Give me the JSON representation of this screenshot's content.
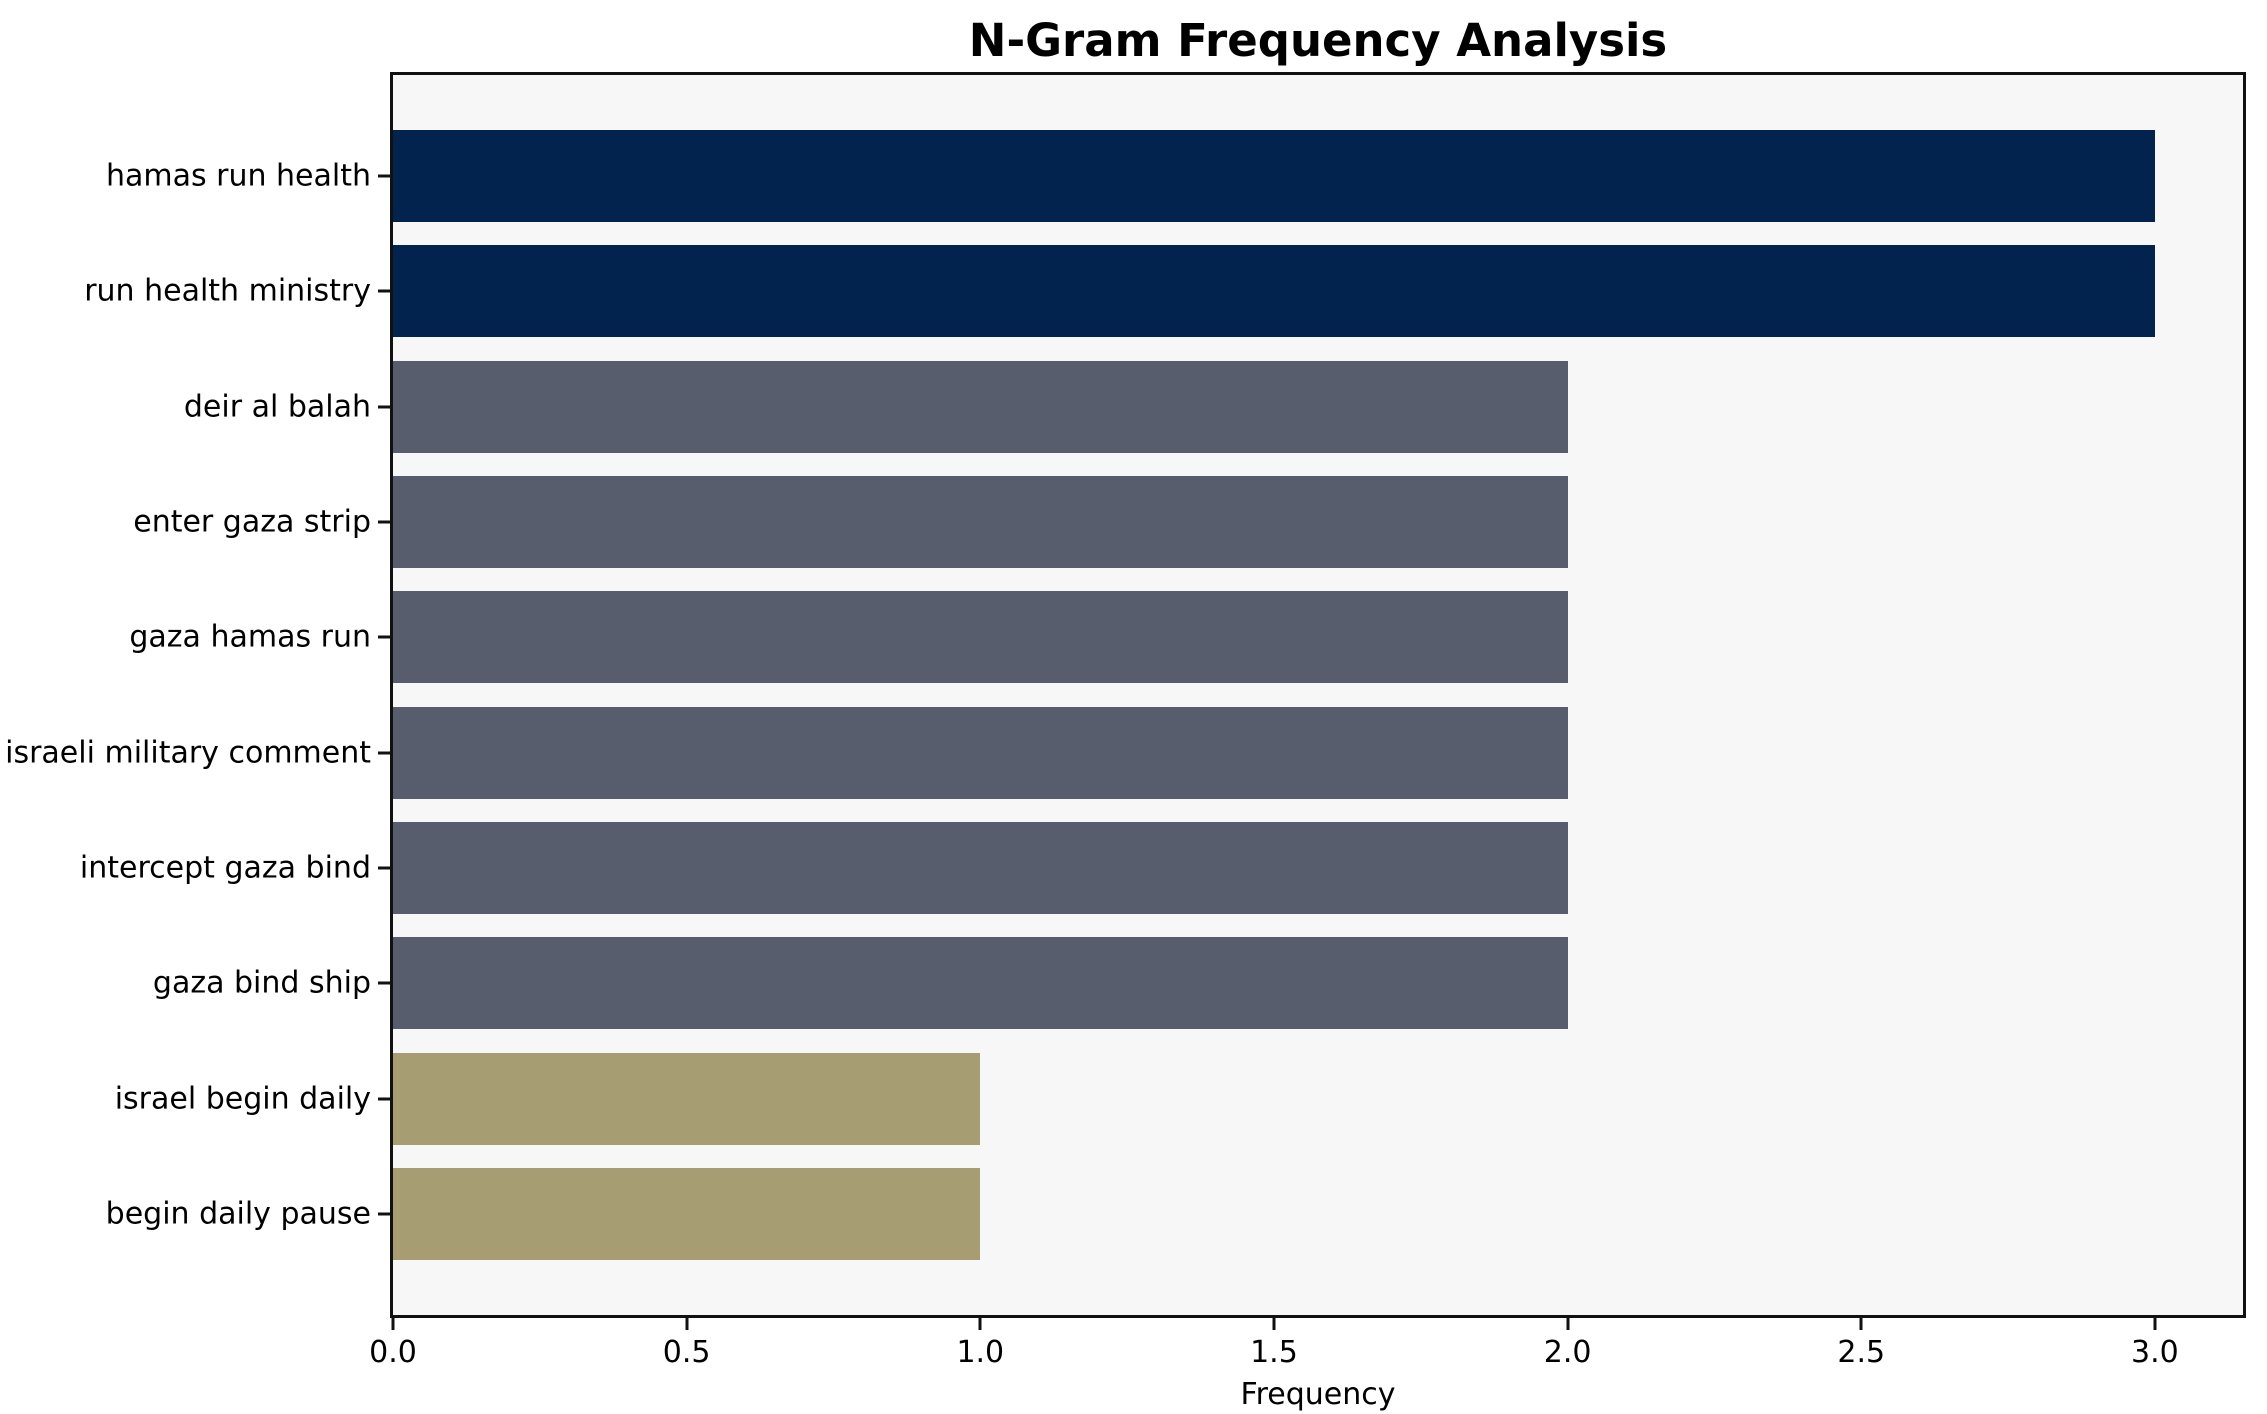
{
  "chart_data": {
    "type": "bar",
    "orientation": "horizontal",
    "title": "N-Gram Frequency Analysis",
    "xlabel": "Frequency",
    "ylabel": "",
    "categories": [
      "hamas run health",
      "run health ministry",
      "deir al balah",
      "enter gaza strip",
      "gaza hamas run",
      "israeli military comment",
      "intercept gaza bind",
      "gaza bind ship",
      "israel begin daily",
      "begin daily pause"
    ],
    "values": [
      3,
      3,
      2,
      2,
      2,
      2,
      2,
      2,
      1,
      1
    ],
    "bar_colors": [
      "#02234d",
      "#02234d",
      "#575d6c",
      "#575d6c",
      "#575d6c",
      "#575d6c",
      "#575d6c",
      "#575d6c",
      "#a69d72",
      "#a69d72"
    ],
    "xlim": [
      0,
      3.15
    ],
    "x_tick_labels": [
      "0.0",
      "0.5",
      "1.0",
      "1.5",
      "2.0",
      "2.5",
      "3.0"
    ],
    "grid": false,
    "legend": null,
    "plot_background": "#f7f7f8",
    "figure_background": "#ffffff",
    "spine_color": "#111111",
    "text_color": "#000000"
  }
}
